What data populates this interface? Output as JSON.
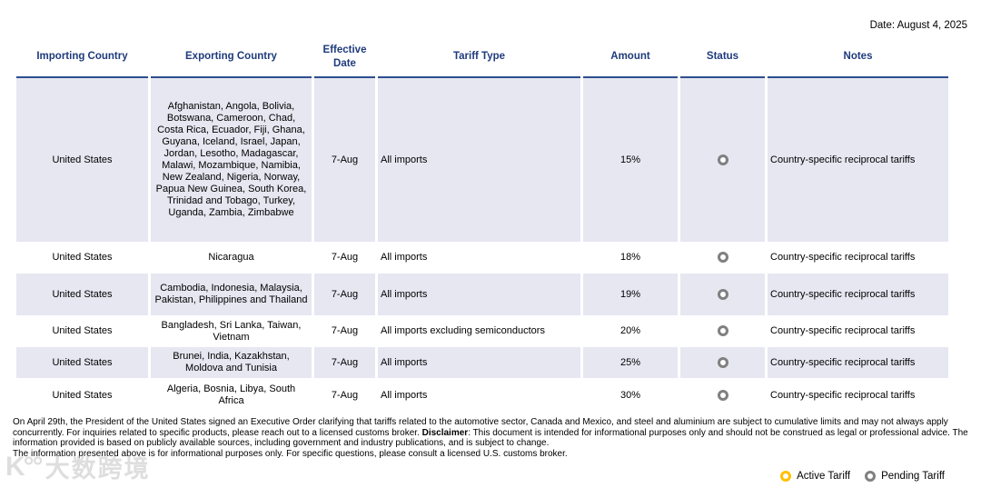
{
  "date_label": "Date: August 4, 2025",
  "colors": {
    "header_text": "#1F3B7C",
    "header_line": "#2E4D8E",
    "row_stripe": "#E6E7F1",
    "pending_status": "#808080",
    "active_status": "#FFC000"
  },
  "table": {
    "columns": [
      "Importing Country",
      "Exporting Country",
      "Effective Date",
      "Tariff Type",
      "Amount",
      "Status",
      "Notes"
    ],
    "rows": [
      {
        "importing_country": "United States",
        "exporting_country": "Afghanistan, Angola, Bolivia, Botswana, Cameroon, Chad, Costa Rica, Ecuador, Fiji, Ghana, Guyana, Iceland, Israel, Japan, Jordan, Lesotho, Madagascar, Malawi, Mozambique, Namibia, New Zealand, Nigeria, Norway, Papua New Guinea, South Korea, Trinidad and Tobago, Turkey, Uganda, Zambia, Zimbabwe",
        "effective_date": "7-Aug",
        "tariff_type": "All imports",
        "amount": "15%",
        "status": "pending",
        "notes": "Country-specific reciprocal tariffs"
      },
      {
        "importing_country": "United States",
        "exporting_country": "Nicaragua",
        "effective_date": "7-Aug",
        "tariff_type": "All imports",
        "amount": "18%",
        "status": "pending",
        "notes": "Country-specific reciprocal tariffs"
      },
      {
        "importing_country": "United States",
        "exporting_country": "Cambodia, Indonesia, Malaysia, Pakistan, Philippines and Thailand",
        "effective_date": "7-Aug",
        "tariff_type": "All imports",
        "amount": "19%",
        "status": "pending",
        "notes": "Country-specific reciprocal tariffs"
      },
      {
        "importing_country": "United States",
        "exporting_country": "Bangladesh, Sri Lanka, Taiwan, Vietnam",
        "effective_date": "7-Aug",
        "tariff_type": "All imports excluding semiconductors",
        "amount": "20%",
        "status": "pending",
        "notes": "Country-specific reciprocal tariffs"
      },
      {
        "importing_country": "United States",
        "exporting_country": "Brunei, India, Kazakhstan, Moldova and Tunisia",
        "effective_date": "7-Aug",
        "tariff_type": "All imports",
        "amount": "25%",
        "status": "pending",
        "notes": "Country-specific reciprocal tariffs"
      },
      {
        "importing_country": "United States",
        "exporting_country": "Algeria, Bosnia, Libya, South Africa",
        "effective_date": "7-Aug",
        "tariff_type": "All imports",
        "amount": "30%",
        "status": "pending",
        "notes": "Country-specific reciprocal tariffs"
      }
    ]
  },
  "footer": {
    "para1_before": "On April 29th, the President of the United States signed an Executive Order clarifying that tariffs related to the automotive sector, Canada and Mexico, and steel and aluminium are subject to cumulative limits and may not always apply concurrently. For inquiries related to specific products, please reach out to a licensed customs broker. ",
    "para1_bold": "Disclaimer",
    "para1_after": ": This document is intended for informational purposes only and should not be construed as legal or professional advice. The information provided is based on publicly available sources, including government and industry publications, and is subject to change.",
    "para2": "The information presented above is for informational purposes only. For specific questions, please consult a licensed U.S. customs broker."
  },
  "legend": {
    "active_label": "Active Tariff",
    "pending_label": "Pending Tariff"
  },
  "watermark": {
    "icon": "K°°",
    "text": "大数跨境"
  }
}
